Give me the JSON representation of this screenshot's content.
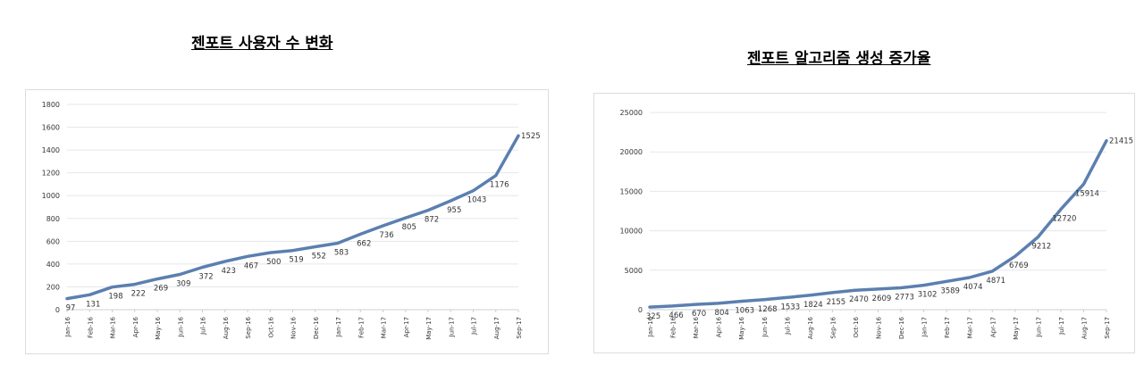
{
  "chart_data": [
    {
      "type": "line",
      "title": "젠포트 사용자 수 변화",
      "xlabel": "",
      "ylabel": "",
      "categories": [
        "Jan-16",
        "Feb-16",
        "Mar-16",
        "Apr-16",
        "May-16",
        "Jun-16",
        "Jul-16",
        "Aug-16",
        "Sep-16",
        "Oct-16",
        "Nov-16",
        "Dec-16",
        "Jan-17",
        "Feb-17",
        "Mar-17",
        "Apr-17",
        "May-17",
        "Jun-17",
        "Jul-17",
        "Aug-17",
        "Sep-17"
      ],
      "values": [
        97,
        131,
        198,
        222,
        269,
        309,
        372,
        423,
        467,
        500,
        519,
        552,
        583,
        662,
        736,
        805,
        872,
        955,
        1043,
        1176,
        1525
      ],
      "yticks": [
        "0",
        "200",
        "400",
        "600",
        "800",
        "1000",
        "1200",
        "1400",
        "1600",
        "1800"
      ],
      "ylim": [
        0,
        1800
      ],
      "grid": true,
      "color": "#5b7fb0"
    },
    {
      "type": "line",
      "title": "젠포트 알고리즘 생성 증가율",
      "xlabel": "",
      "ylabel": "",
      "categories": [
        "Jan-16",
        "Feb-16",
        "Mar-16",
        "Apr-16",
        "May-16",
        "Jun-16",
        "Jul-16",
        "Aug-16",
        "Sep-16",
        "Oct-16",
        "Nov-16",
        "Dec-16",
        "Jan-17",
        "Feb-17",
        "Mar-17",
        "Apr-17",
        "May-17",
        "Jun-17",
        "Jul-17",
        "Aug-17",
        "Sep-17"
      ],
      "values": [
        325,
        466,
        670,
        804,
        1063,
        1268,
        1533,
        1824,
        2155,
        2470,
        2609,
        2773,
        3102,
        3589,
        4074,
        4871,
        6769,
        9212,
        12720,
        15914,
        21415
      ],
      "yticks": [
        "0",
        "5000",
        "10000",
        "15000",
        "20000",
        "25000"
      ],
      "ylim": [
        0,
        25000
      ],
      "grid": true,
      "color": "#5b7fb0"
    }
  ]
}
